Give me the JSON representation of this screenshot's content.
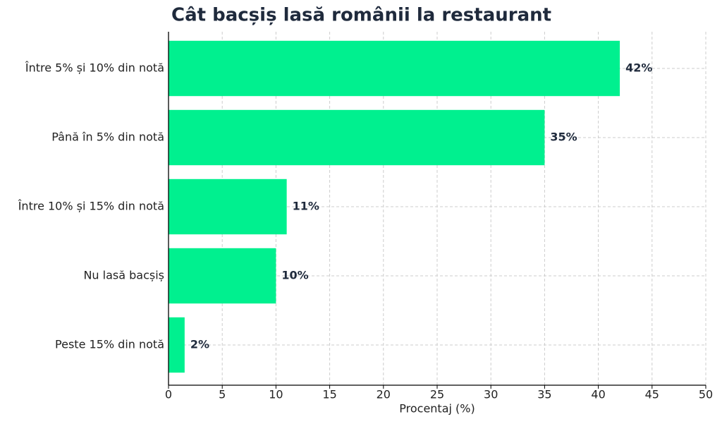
{
  "chart_data": {
    "type": "barh",
    "title": "Cât bacșiș lasă românii la restaurant",
    "x_label": "Procentaj (%)",
    "categories": [
      "Între 5% și 10% din notă",
      "Până în 5% din notă",
      "Între 10% și 15% din notă",
      "Nu lasă bacșiș",
      "Peste 15% din notă"
    ],
    "values": [
      42,
      35,
      11,
      10,
      1.5
    ],
    "value_labels": [
      "42%",
      "35%",
      "11%",
      "10%",
      "2%"
    ],
    "color": "#00f08f",
    "xlim": [
      0,
      50
    ],
    "xticks": [
      0,
      5,
      10,
      15,
      20,
      25,
      30,
      35,
      40,
      45,
      50
    ],
    "grid": true
  }
}
